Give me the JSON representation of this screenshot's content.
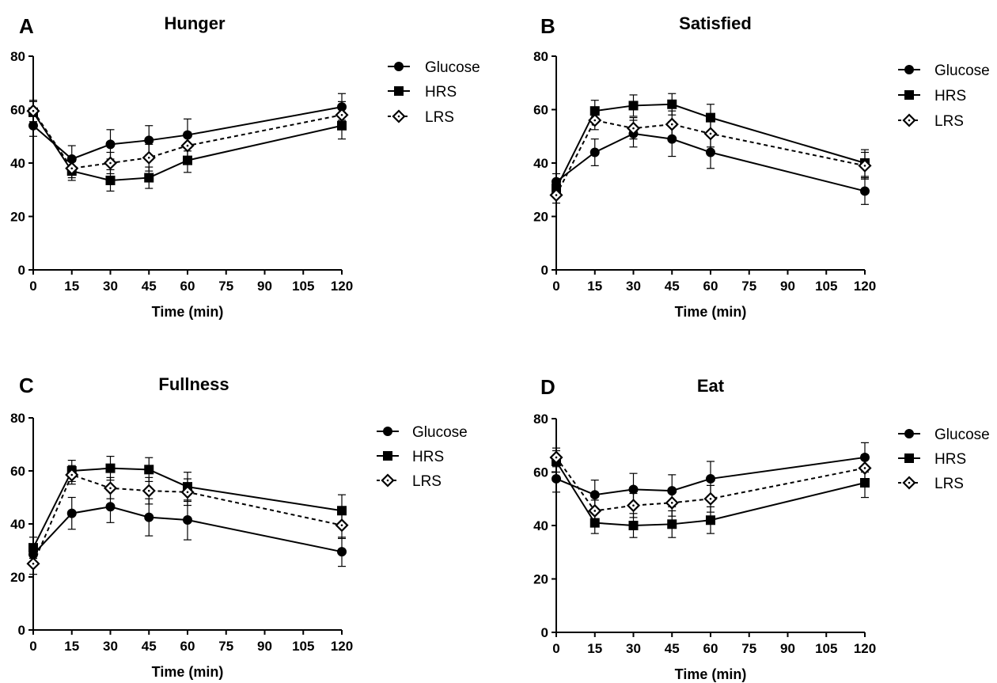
{
  "colors": {
    "ink": "#000000",
    "background": "#ffffff"
  },
  "chart_data": [
    {
      "type": "line",
      "panel_label": "A",
      "title": "Hunger",
      "xlabel": "Time (min)",
      "ylabel": "",
      "x_ticks": [
        0,
        15,
        30,
        45,
        60,
        75,
        90,
        105,
        120
      ],
      "y_ticks": [
        0,
        20,
        40,
        60,
        80
      ],
      "xlim": [
        0,
        120
      ],
      "ylim": [
        0,
        80
      ],
      "legend": "right",
      "x": [
        0,
        15,
        30,
        45,
        60,
        120
      ],
      "series": [
        {
          "name": "Glucose",
          "marker": "circle",
          "dash": "solid",
          "values": [
            54,
            41.5,
            47,
            48.5,
            50.5,
            61
          ],
          "errors": [
            4,
            5,
            5.5,
            5.5,
            6,
            5
          ]
        },
        {
          "name": "HRS",
          "marker": "square",
          "dash": "solid",
          "values": [
            59,
            37,
            33.5,
            34.5,
            41,
            54
          ],
          "errors": [
            4,
            3.5,
            4,
            4,
            4.5,
            5
          ]
        },
        {
          "name": "LRS",
          "marker": "diamond-open",
          "dash": "dashed",
          "values": [
            59.5,
            38,
            40,
            42,
            46.5,
            58
          ],
          "errors": [
            4,
            3.5,
            4,
            5,
            5,
            5
          ]
        }
      ]
    },
    {
      "type": "line",
      "panel_label": "B",
      "title": "Satisfied",
      "xlabel": "Time (min)",
      "ylabel": "",
      "x_ticks": [
        0,
        15,
        30,
        45,
        60,
        75,
        90,
        105,
        120
      ],
      "y_ticks": [
        0,
        20,
        40,
        60,
        80
      ],
      "xlim": [
        0,
        120
      ],
      "ylim": [
        0,
        80
      ],
      "legend": "right",
      "x": [
        0,
        15,
        30,
        45,
        60,
        120
      ],
      "series": [
        {
          "name": "Glucose",
          "marker": "circle",
          "dash": "solid",
          "values": [
            33,
            44,
            51,
            49,
            44,
            29.5
          ],
          "errors": [
            3,
            5,
            5,
            6.5,
            6,
            5
          ]
        },
        {
          "name": "HRS",
          "marker": "square",
          "dash": "solid",
          "values": [
            30.5,
            59.5,
            61.5,
            62,
            57,
            40
          ],
          "errors": [
            3,
            4,
            4,
            4,
            5,
            5
          ]
        },
        {
          "name": "LRS",
          "marker": "diamond-open",
          "dash": "dashed",
          "values": [
            28,
            56,
            53,
            54.5,
            51,
            39
          ],
          "errors": [
            3,
            3.5,
            4,
            5,
            5,
            5
          ]
        }
      ]
    },
    {
      "type": "line",
      "panel_label": "C",
      "title": "Fullness",
      "xlabel": "Time (min)",
      "ylabel": "",
      "x_ticks": [
        0,
        15,
        30,
        45,
        60,
        75,
        90,
        105,
        120
      ],
      "y_ticks": [
        0,
        20,
        40,
        60,
        80
      ],
      "xlim": [
        0,
        120
      ],
      "ylim": [
        0,
        80
      ],
      "legend": "right",
      "x": [
        0,
        15,
        30,
        45,
        60,
        120
      ],
      "series": [
        {
          "name": "Glucose",
          "marker": "circle",
          "dash": "solid",
          "values": [
            28.5,
            44,
            46.5,
            42.5,
            41.5,
            29.5
          ],
          "errors": [
            4,
            6,
            6,
            7,
            7.5,
            5.5
          ]
        },
        {
          "name": "HRS",
          "marker": "square",
          "dash": "solid",
          "values": [
            31,
            60,
            61,
            60.5,
            54,
            45
          ],
          "errors": [
            4,
            4,
            4.5,
            4.5,
            5.5,
            6
          ]
        },
        {
          "name": "LRS",
          "marker": "diamond-open",
          "dash": "dashed",
          "values": [
            25,
            58.5,
            53.5,
            52.5,
            52,
            39.5
          ],
          "errors": [
            4,
            3.5,
            4,
            5,
            5,
            5
          ]
        }
      ]
    },
    {
      "type": "line",
      "panel_label": "D",
      "title": "Eat",
      "xlabel": "Time (min)",
      "ylabel": "",
      "x_ticks": [
        0,
        15,
        30,
        45,
        60,
        75,
        90,
        105,
        120
      ],
      "y_ticks": [
        0,
        20,
        40,
        60,
        80
      ],
      "xlim": [
        0,
        120
      ],
      "ylim": [
        0,
        80
      ],
      "legend": "right",
      "x": [
        0,
        15,
        30,
        45,
        60,
        120
      ],
      "series": [
        {
          "name": "Glucose",
          "marker": "circle",
          "dash": "solid",
          "values": [
            57.5,
            51.5,
            53.5,
            53,
            57.5,
            65.5
          ],
          "errors": [
            5,
            5.5,
            6,
            6,
            6.5,
            5.5
          ]
        },
        {
          "name": "HRS",
          "marker": "square",
          "dash": "solid",
          "values": [
            64,
            41,
            40,
            40.5,
            42,
            56
          ],
          "errors": [
            4,
            4,
            4.5,
            5,
            5,
            5.5
          ]
        },
        {
          "name": "LRS",
          "marker": "diamond-open",
          "dash": "dashed",
          "values": [
            65.5,
            45.5,
            47.5,
            48.5,
            50,
            61.5
          ],
          "errors": [
            3.5,
            4,
            4.5,
            5,
            5,
            5
          ]
        }
      ]
    }
  ]
}
